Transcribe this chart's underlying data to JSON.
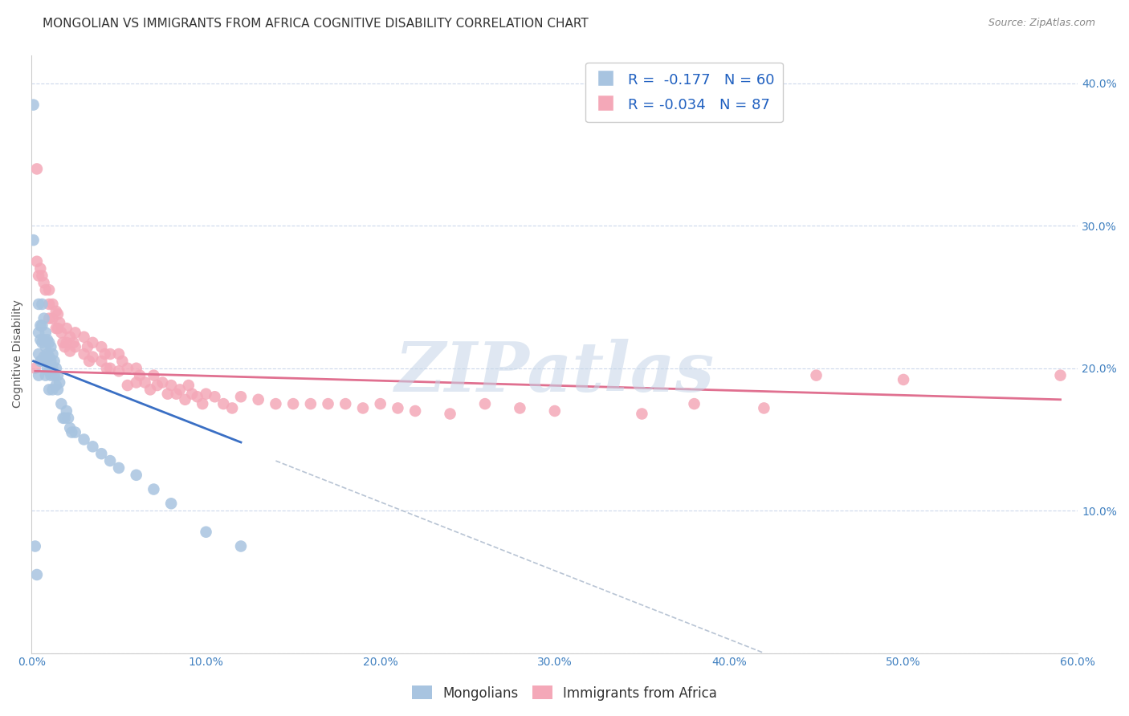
{
  "title": "MONGOLIAN VS IMMIGRANTS FROM AFRICA COGNITIVE DISABILITY CORRELATION CHART",
  "source": "Source: ZipAtlas.com",
  "ylabel": "Cognitive Disability",
  "xlim": [
    0.0,
    0.6
  ],
  "ylim": [
    0.0,
    0.42
  ],
  "xtick_positions": [
    0.0,
    0.1,
    0.2,
    0.3,
    0.4,
    0.5,
    0.6
  ],
  "xtick_labels": [
    "0.0%",
    "10.0%",
    "20.0%",
    "30.0%",
    "40.0%",
    "50.0%",
    "60.0%"
  ],
  "ytick_positions": [
    0.0,
    0.1,
    0.2,
    0.3,
    0.4
  ],
  "ytick_right_labels": [
    "",
    "10.0%",
    "20.0%",
    "30.0%",
    "40.0%"
  ],
  "mongolian_color": "#a8c4e0",
  "africa_color": "#f4a8b8",
  "mongolian_line_color": "#3a6fc4",
  "africa_line_color": "#e07090",
  "dashed_line_color": "#b8c4d4",
  "R_mongolian": -0.177,
  "N_mongolian": 60,
  "R_africa": -0.034,
  "N_africa": 87,
  "legend_R_color": "#2060c0",
  "watermark": "ZIPatlas",
  "mongolian_scatter_x": [
    0.001,
    0.002,
    0.003,
    0.004,
    0.004,
    0.004,
    0.004,
    0.005,
    0.005,
    0.005,
    0.006,
    0.006,
    0.006,
    0.006,
    0.007,
    0.007,
    0.007,
    0.008,
    0.008,
    0.008,
    0.008,
    0.009,
    0.009,
    0.009,
    0.01,
    0.01,
    0.01,
    0.01,
    0.011,
    0.011,
    0.011,
    0.012,
    0.012,
    0.012,
    0.013,
    0.013,
    0.014,
    0.014,
    0.015,
    0.015,
    0.016,
    0.017,
    0.018,
    0.019,
    0.02,
    0.021,
    0.022,
    0.023,
    0.025,
    0.03,
    0.035,
    0.04,
    0.045,
    0.05,
    0.06,
    0.07,
    0.08,
    0.1,
    0.12,
    0.001
  ],
  "mongolian_scatter_y": [
    0.385,
    0.075,
    0.055,
    0.245,
    0.225,
    0.21,
    0.195,
    0.23,
    0.22,
    0.205,
    0.245,
    0.23,
    0.218,
    0.205,
    0.235,
    0.22,
    0.208,
    0.225,
    0.215,
    0.205,
    0.195,
    0.22,
    0.21,
    0.2,
    0.218,
    0.208,
    0.198,
    0.185,
    0.215,
    0.205,
    0.195,
    0.21,
    0.2,
    0.185,
    0.205,
    0.195,
    0.2,
    0.188,
    0.195,
    0.185,
    0.19,
    0.175,
    0.165,
    0.165,
    0.17,
    0.165,
    0.158,
    0.155,
    0.155,
    0.15,
    0.145,
    0.14,
    0.135,
    0.13,
    0.125,
    0.115,
    0.105,
    0.085,
    0.075,
    0.29
  ],
  "africa_scatter_x": [
    0.002,
    0.003,
    0.004,
    0.005,
    0.006,
    0.007,
    0.008,
    0.01,
    0.01,
    0.01,
    0.012,
    0.012,
    0.014,
    0.014,
    0.015,
    0.015,
    0.016,
    0.017,
    0.018,
    0.019,
    0.02,
    0.02,
    0.022,
    0.022,
    0.024,
    0.025,
    0.025,
    0.03,
    0.03,
    0.032,
    0.033,
    0.035,
    0.035,
    0.04,
    0.04,
    0.042,
    0.043,
    0.045,
    0.045,
    0.05,
    0.05,
    0.052,
    0.055,
    0.055,
    0.06,
    0.06,
    0.062,
    0.065,
    0.068,
    0.07,
    0.072,
    0.075,
    0.078,
    0.08,
    0.083,
    0.085,
    0.088,
    0.09,
    0.092,
    0.095,
    0.098,
    0.1,
    0.105,
    0.11,
    0.115,
    0.12,
    0.13,
    0.14,
    0.15,
    0.16,
    0.17,
    0.18,
    0.19,
    0.2,
    0.21,
    0.22,
    0.24,
    0.26,
    0.28,
    0.3,
    0.35,
    0.38,
    0.42,
    0.45,
    0.5,
    0.59,
    0.003
  ],
  "africa_scatter_y": [
    0.2,
    0.275,
    0.265,
    0.27,
    0.265,
    0.26,
    0.255,
    0.255,
    0.245,
    0.235,
    0.245,
    0.235,
    0.24,
    0.228,
    0.238,
    0.228,
    0.232,
    0.225,
    0.218,
    0.215,
    0.228,
    0.218,
    0.222,
    0.212,
    0.218,
    0.225,
    0.215,
    0.222,
    0.21,
    0.215,
    0.205,
    0.218,
    0.208,
    0.215,
    0.205,
    0.21,
    0.2,
    0.21,
    0.2,
    0.21,
    0.198,
    0.205,
    0.2,
    0.188,
    0.2,
    0.19,
    0.195,
    0.19,
    0.185,
    0.195,
    0.188,
    0.19,
    0.182,
    0.188,
    0.182,
    0.185,
    0.178,
    0.188,
    0.182,
    0.18,
    0.175,
    0.182,
    0.18,
    0.175,
    0.172,
    0.18,
    0.178,
    0.175,
    0.175,
    0.175,
    0.175,
    0.175,
    0.172,
    0.175,
    0.172,
    0.17,
    0.168,
    0.175,
    0.172,
    0.17,
    0.168,
    0.175,
    0.172,
    0.195,
    0.192,
    0.195,
    0.34
  ],
  "background_color": "#ffffff",
  "grid_color": "#ccd8ec",
  "title_fontsize": 11,
  "axis_label_fontsize": 10,
  "tick_fontsize": 10,
  "legend_fontsize": 13,
  "watermark_color": "#c5d5e8",
  "mongolian_line_x": [
    0.001,
    0.12
  ],
  "mongolian_line_y": [
    0.205,
    0.148
  ],
  "africa_line_x": [
    0.002,
    0.59
  ],
  "africa_line_y": [
    0.198,
    0.178
  ],
  "dashed_line_x": [
    0.14,
    0.42
  ],
  "dashed_line_y": [
    0.135,
    0.0
  ]
}
